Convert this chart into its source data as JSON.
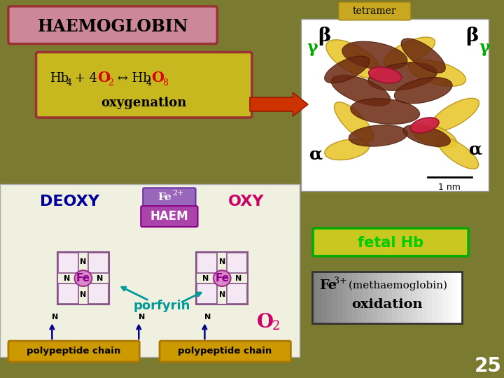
{
  "bg_color": "#7a7a30",
  "haem_title": "HAEMOGLOBIN",
  "haem_box_bg": "#cc8899",
  "haem_box_edge": "#993333",
  "equation_box_bg": "#c8b820",
  "equation_box_edge": "#993333",
  "fetal_box_bg": "#c8c820",
  "fetal_box_edge": "#00aa00",
  "fetal_text": "fetal Hb",
  "fetal_text_color": "#00cc00",
  "polypeptide_box_bg": "#cc9900",
  "polypeptide_box_edge": "#aa7700",
  "polypeptide_text": "polypeptide chain",
  "deoxy_text": "DEOXY",
  "deoxy_color": "#000099",
  "oxy_text": "OXY",
  "oxy_color": "#cc0066",
  "haem_label": "HAEM",
  "haem_label_bg": "#aa44aa",
  "haem_label_color": "#ffffff",
  "fe2_color": "#8800aa",
  "porfyrin_text": "porfyrin",
  "porfyrin_color": "#009999",
  "o2_color": "#cc0066",
  "arrow_color": "#cc3300",
  "slide_number": "25",
  "slide_number_color": "#ffffff",
  "alpha_color": "#000000",
  "beta_color": "#000000",
  "gamma_color": "#00aa00",
  "tetramer_text": "tetramer"
}
